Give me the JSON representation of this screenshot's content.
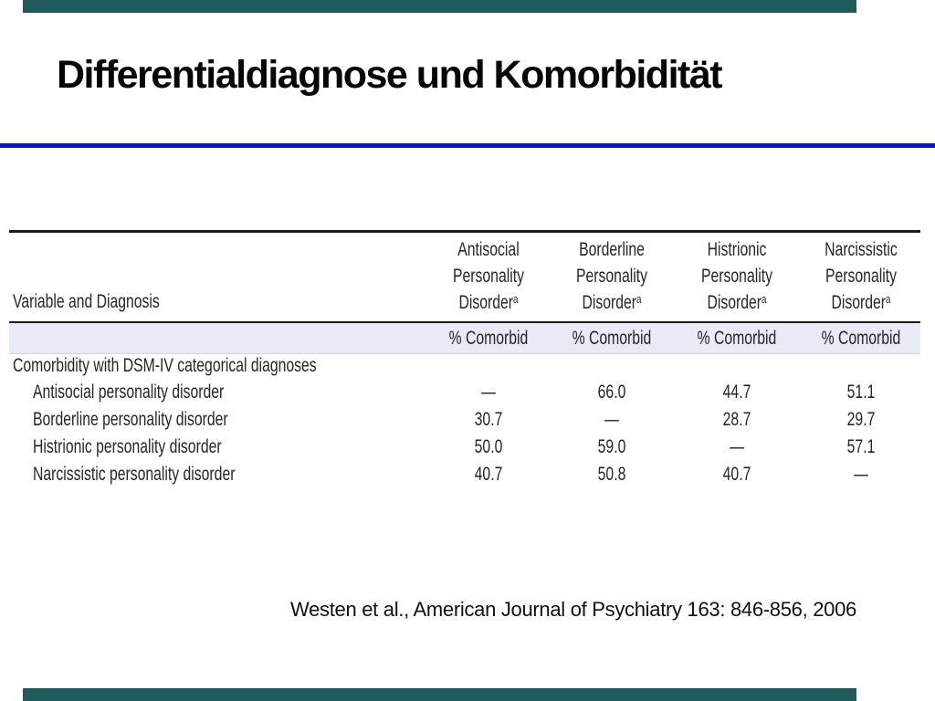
{
  "slide": {
    "title": "Differentialdiagnose und Komorbidität",
    "citation": "Westen et al., American Journal of Psychiatry 163: 846-856, 2006",
    "colors": {
      "decorative_bar": "#1e5b5a",
      "title_rule_blue": "#1111d6",
      "subheader_band": "#e8eaf6",
      "text": "#262626"
    }
  },
  "table": {
    "row_header_label": "Variable and Diagnosis",
    "columns": [
      {
        "line1": "Antisocial",
        "line2": "Personality",
        "line3": "Disorder",
        "sup": "a",
        "subheader": "% Comorbid"
      },
      {
        "line1": "Borderline",
        "line2": "Personality",
        "line3": "Disorder",
        "sup": "a",
        "subheader": "% Comorbid"
      },
      {
        "line1": "Histrionic",
        "line2": "Personality",
        "line3": "Disorder",
        "sup": "a",
        "subheader": "% Comorbid"
      },
      {
        "line1": "Narcissistic",
        "line2": "Personality",
        "line3": "Disorder",
        "sup": "a",
        "subheader": "% Comorbid"
      }
    ],
    "section_header": "Comorbidity with DSM-IV categorical diagnoses",
    "rows": [
      {
        "label": "Antisocial personality disorder",
        "values": [
          "—",
          "66.0",
          "44.7",
          "51.1"
        ]
      },
      {
        "label": "Borderline personality disorder",
        "values": [
          "30.7",
          "—",
          "28.7",
          "29.7"
        ]
      },
      {
        "label": "Histrionic personality disorder",
        "values": [
          "50.0",
          "59.0",
          "—",
          "57.1"
        ]
      },
      {
        "label": "Narcissistic personality disorder",
        "values": [
          "40.7",
          "50.8",
          "40.7",
          "—"
        ]
      }
    ]
  }
}
